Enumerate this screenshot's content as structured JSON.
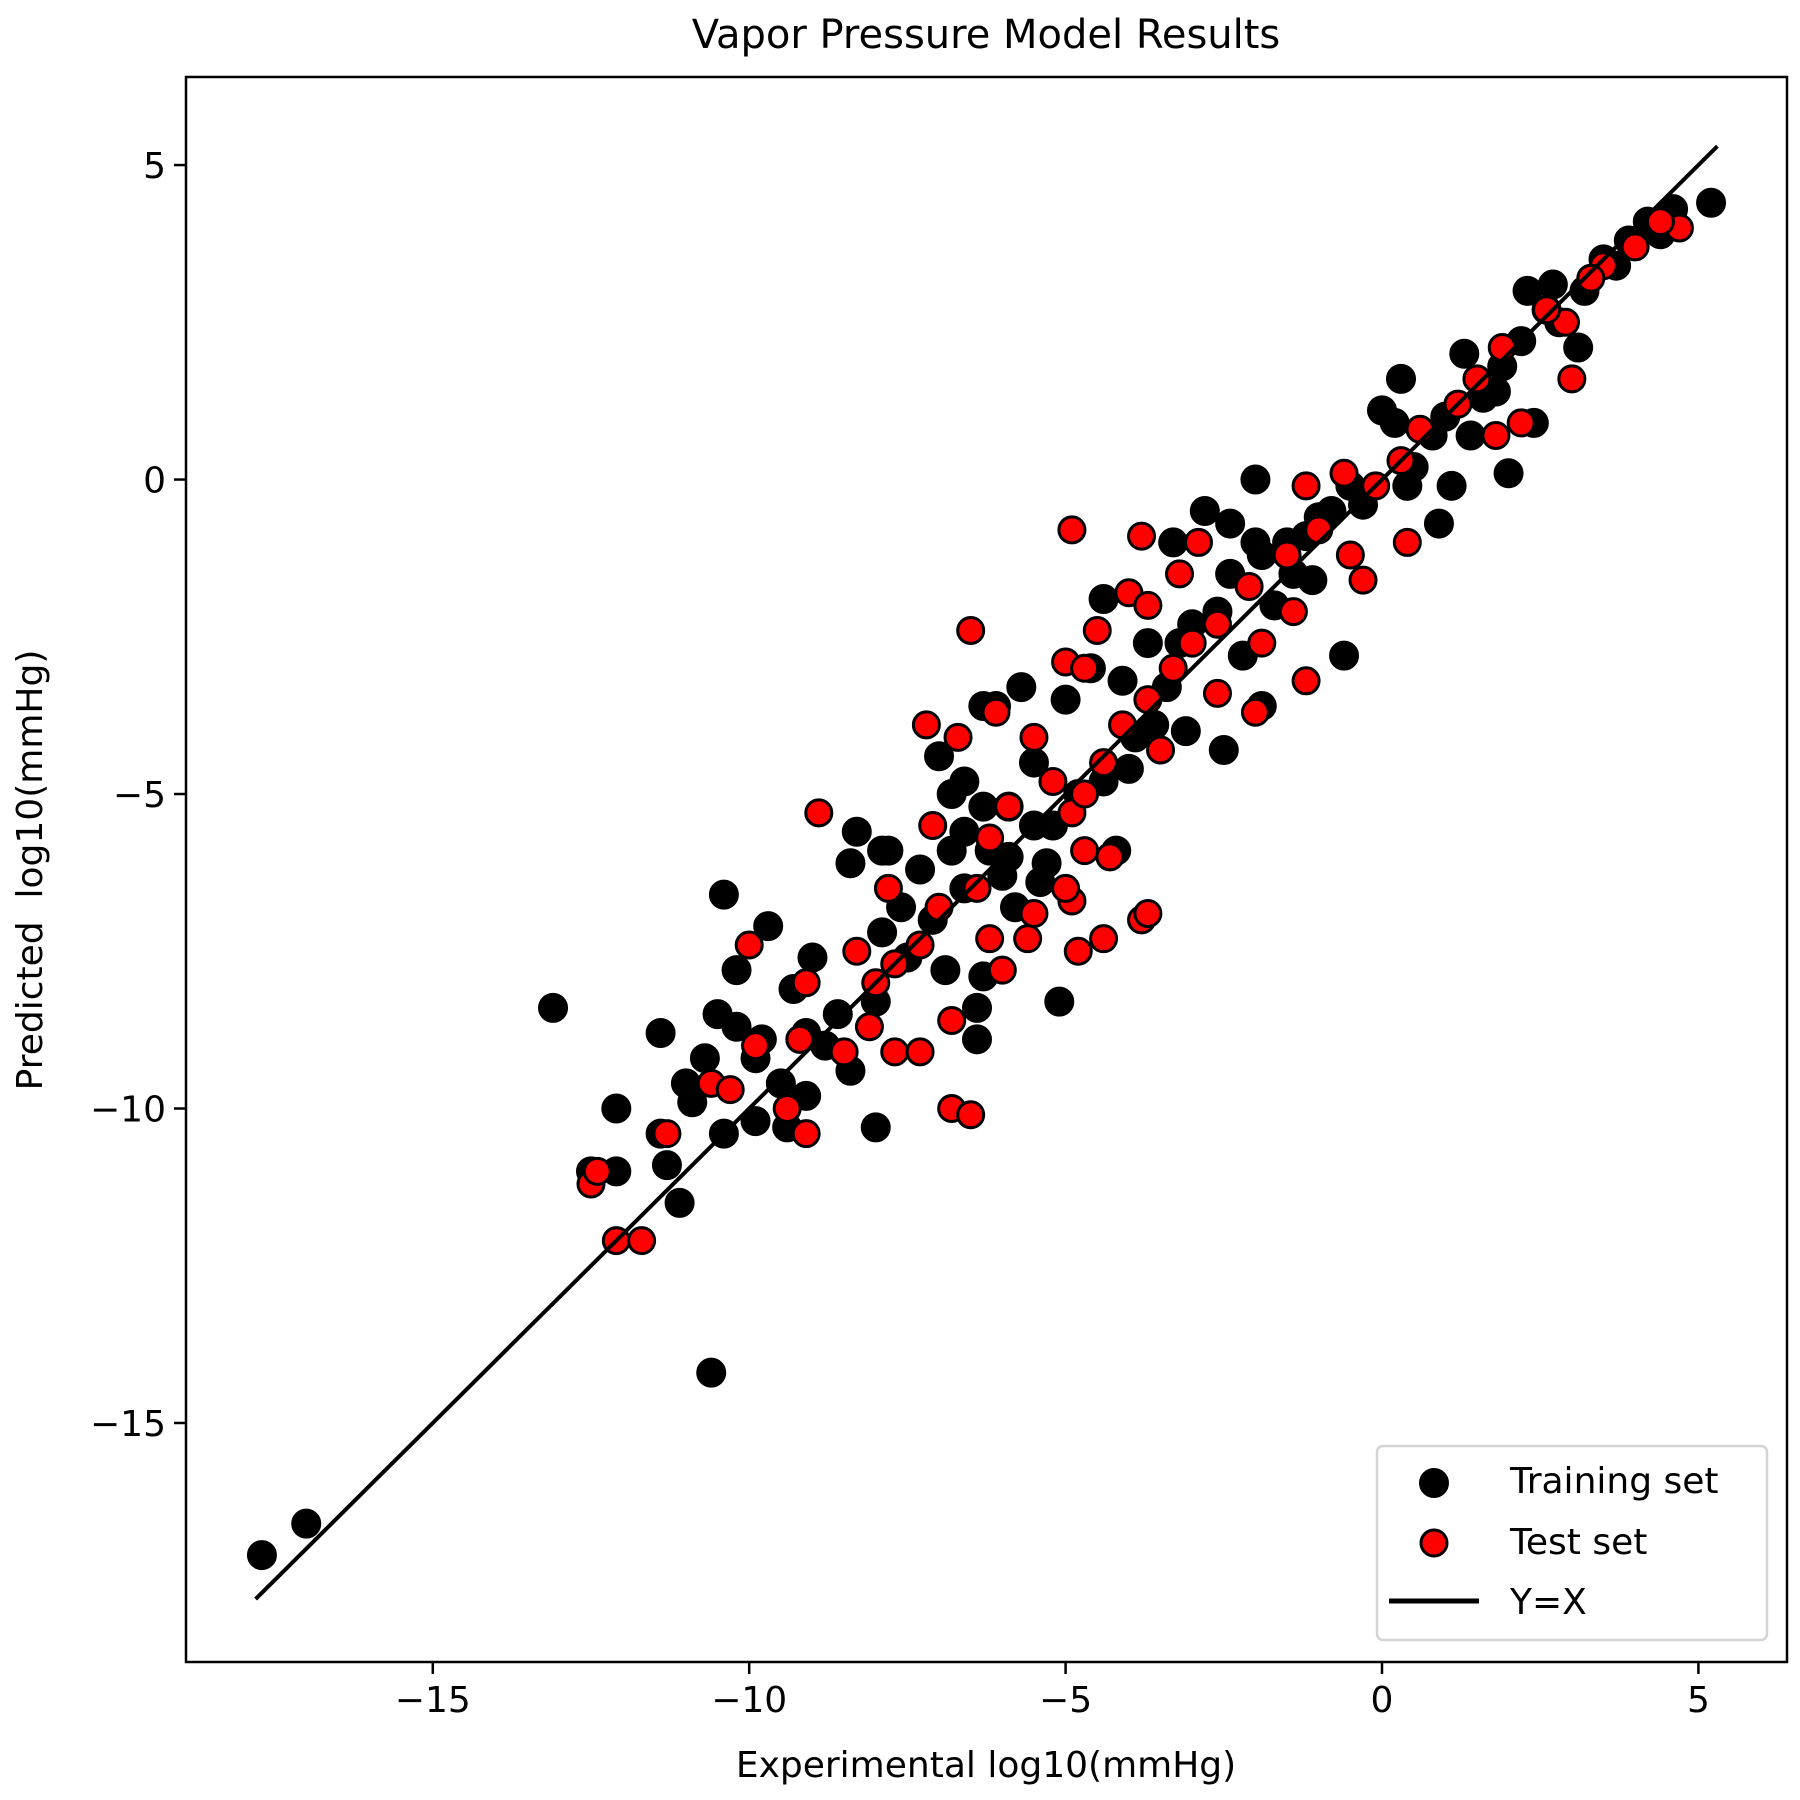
{
  "chart_data": {
    "type": "scatter",
    "title": "Vapor Pressure Model Results",
    "xlabel": "Experimental log10(mmHg)",
    "ylabel": "Predicted  log10(mmHg)",
    "xlim": [
      -18.9,
      6.4
    ],
    "ylim": [
      -18.8,
      6.4
    ],
    "xticks": [
      -15,
      -10,
      -5,
      0,
      5
    ],
    "yticks": [
      -15,
      -10,
      -5,
      0,
      5
    ],
    "xtick_labels": [
      "−15",
      "−10",
      "−5",
      "0",
      "5"
    ],
    "ytick_labels": [
      "−15",
      "−10",
      "−5",
      "0",
      "5"
    ],
    "grid": false,
    "legend": {
      "placement": "bottom-right",
      "entries": [
        "Training set",
        "Test set",
        "Y=X"
      ]
    },
    "series": [
      {
        "name": "Training set",
        "color": "#000000",
        "edge_color": "#000000",
        "points": [
          [
            -17.7,
            -17.1
          ],
          [
            -17.0,
            -16.6
          ],
          [
            -10.6,
            -14.2
          ],
          [
            -13.1,
            -8.4
          ],
          [
            -12.1,
            -10.0
          ],
          [
            -12.1,
            -11.0
          ],
          [
            -12.5,
            -11.0
          ],
          [
            -11.4,
            -8.8
          ],
          [
            -11.1,
            -11.5
          ],
          [
            -11.3,
            -10.9
          ],
          [
            -11.4,
            -10.4
          ],
          [
            -11.0,
            -9.6
          ],
          [
            -10.4,
            -6.6
          ],
          [
            -10.2,
            -7.8
          ],
          [
            -9.7,
            -7.1
          ],
          [
            -10.5,
            -8.5
          ],
          [
            -10.7,
            -9.2
          ],
          [
            -10.4,
            -10.4
          ],
          [
            -9.9,
            -10.2
          ],
          [
            -9.4,
            -10.3
          ],
          [
            -8.0,
            -10.3
          ],
          [
            -8.3,
            -5.6
          ],
          [
            -8.4,
            -6.1
          ],
          [
            -7.8,
            -5.9
          ],
          [
            -5.1,
            -8.3
          ],
          [
            -5.7,
            -3.3
          ],
          [
            -6.3,
            -3.6
          ],
          [
            -6.1,
            -3.6
          ],
          [
            -2.0,
            0.0
          ],
          [
            0.3,
            1.6
          ],
          [
            2.0,
            0.1
          ],
          [
            2.4,
            0.9
          ],
          [
            5.2,
            4.4
          ],
          [
            0.9,
            -0.7
          ],
          [
            -0.6,
            -2.8
          ],
          [
            -1.9,
            -3.6
          ],
          [
            -2.5,
            -4.3
          ],
          [
            -2.8,
            -0.5
          ],
          [
            -3.3,
            -1.0
          ],
          [
            -4.4,
            -1.9
          ],
          [
            -6.4,
            -8.9
          ],
          [
            -6.4,
            -8.4
          ],
          [
            -6.3,
            -7.9
          ],
          [
            -7.0,
            -4.4
          ],
          [
            -6.3,
            -5.2
          ],
          [
            -6.9,
            -7.8
          ],
          [
            -9.0,
            -7.6
          ],
          [
            -9.3,
            -8.1
          ],
          [
            -8.4,
            -9.4
          ],
          [
            -9.1,
            -9.8
          ],
          [
            -7.9,
            -7.2
          ],
          [
            -7.9,
            -5.9
          ],
          [
            -5.2,
            -5.5
          ],
          [
            -4.2,
            -5.9
          ],
          [
            -3.6,
            -3.9
          ],
          [
            -3.1,
            -4.0
          ],
          [
            0.0,
            1.1
          ],
          [
            0.4,
            -0.1
          ],
          [
            1.1,
            -0.1
          ],
          [
            1.4,
            0.7
          ],
          [
            1.8,
            1.4
          ],
          [
            2.6,
            2.7
          ],
          [
            3.5,
            3.5
          ],
          [
            4.2,
            4.1
          ],
          [
            4.6,
            4.3
          ],
          [
            3.1,
            2.1
          ],
          [
            2.3,
            3.0
          ],
          [
            -0.8,
            -0.5
          ],
          [
            -1.4,
            -1.5
          ],
          [
            -2.4,
            -0.7
          ],
          [
            -2.6,
            -2.1
          ],
          [
            -3.7,
            -2.6
          ],
          [
            -4.6,
            -3.0
          ],
          [
            -5.0,
            -3.5
          ],
          [
            -5.5,
            -4.5
          ],
          [
            -5.9,
            -5.2
          ],
          [
            -6.2,
            -5.9
          ],
          [
            -6.6,
            -6.5
          ],
          [
            -7.1,
            -7.0
          ],
          [
            -7.5,
            -7.6
          ],
          [
            -8.0,
            -8.3
          ],
          [
            -8.6,
            -8.5
          ],
          [
            -9.1,
            -8.8
          ],
          [
            -9.5,
            -9.6
          ],
          [
            -9.9,
            -9.2
          ],
          [
            -10.2,
            -8.7
          ],
          [
            -3.0,
            -2.3
          ],
          [
            -1.9,
            -1.2
          ],
          [
            -1.0,
            -0.6
          ],
          [
            -0.5,
            -0.1
          ],
          [
            0.8,
            0.7
          ],
          [
            1.9,
            1.8
          ],
          [
            2.8,
            2.5
          ],
          [
            3.9,
            3.8
          ],
          [
            -3.9,
            -4.1
          ],
          [
            -4.4,
            -4.8
          ],
          [
            -5.5,
            -5.5
          ],
          [
            -2.4,
            -1.5
          ],
          [
            -1.5,
            -1.0
          ],
          [
            -6.8,
            -5.0
          ],
          [
            -6.6,
            -5.6
          ],
          [
            -7.3,
            -6.2
          ],
          [
            -7.6,
            -6.8
          ],
          [
            -6.0,
            -6.3
          ],
          [
            -5.8,
            -6.8
          ],
          [
            -5.4,
            -6.4
          ],
          [
            -4.8,
            -5.0
          ],
          [
            -4.0,
            -4.6
          ],
          [
            -3.4,
            -3.3
          ],
          [
            -2.2,
            -2.8
          ],
          [
            -1.7,
            -2.0
          ],
          [
            -1.2,
            -0.9
          ],
          [
            -0.3,
            -0.4
          ],
          [
            0.5,
            0.2
          ],
          [
            1.0,
            1.0
          ],
          [
            1.6,
            1.3
          ],
          [
            2.2,
            2.2
          ],
          [
            3.2,
            3.0
          ],
          [
            3.7,
            3.4
          ],
          [
            4.4,
            3.9
          ],
          [
            -8.8,
            -9.0
          ],
          [
            -9.8,
            -8.9
          ],
          [
            -10.9,
            -9.9
          ],
          [
            -6.6,
            -4.8
          ],
          [
            -6.8,
            -5.9
          ],
          [
            -5.9,
            -6.0
          ],
          [
            -5.3,
            -6.1
          ],
          [
            -4.1,
            -3.2
          ],
          [
            -3.2,
            -2.6
          ],
          [
            -2.0,
            -1.0
          ],
          [
            -1.1,
            -1.6
          ],
          [
            0.2,
            0.9
          ],
          [
            1.3,
            2.0
          ],
          [
            2.7,
            3.1
          ]
        ]
      },
      {
        "name": "Test set",
        "color": "#ff0000",
        "edge_color": "#000000",
        "points": [
          [
            -4.9,
            -0.8
          ],
          [
            -3.8,
            -0.9
          ],
          [
            -6.5,
            -2.4
          ],
          [
            -8.9,
            -5.3
          ],
          [
            -7.2,
            -3.9
          ],
          [
            -6.7,
            -4.1
          ],
          [
            -6.1,
            -3.7
          ],
          [
            -10.0,
            -7.4
          ],
          [
            -12.1,
            -12.1
          ],
          [
            -11.7,
            -12.1
          ],
          [
            -12.5,
            -11.2
          ],
          [
            -12.4,
            -11.0
          ],
          [
            -11.3,
            -10.4
          ],
          [
            -10.6,
            -9.6
          ],
          [
            -10.3,
            -9.7
          ],
          [
            -9.9,
            -9.0
          ],
          [
            -9.4,
            -10.0
          ],
          [
            -9.1,
            -10.4
          ],
          [
            -9.2,
            -8.9
          ],
          [
            -9.1,
            -8.0
          ],
          [
            -8.5,
            -9.1
          ],
          [
            -8.1,
            -8.7
          ],
          [
            -8.3,
            -7.5
          ],
          [
            -7.8,
            -6.5
          ],
          [
            -7.7,
            -9.1
          ],
          [
            -7.3,
            -9.1
          ],
          [
            -6.8,
            -10.0
          ],
          [
            -6.5,
            -10.1
          ],
          [
            -6.8,
            -8.6
          ],
          [
            -6.0,
            -7.8
          ],
          [
            -6.2,
            -7.3
          ],
          [
            -5.6,
            -7.3
          ],
          [
            -5.5,
            -6.9
          ],
          [
            -4.8,
            -7.5
          ],
          [
            -4.4,
            -7.3
          ],
          [
            -3.8,
            -7.0
          ],
          [
            -3.7,
            -6.9
          ],
          [
            -4.9,
            -6.7
          ],
          [
            -5.0,
            -6.5
          ],
          [
            -4.3,
            -6.0
          ],
          [
            -4.7,
            -5.9
          ],
          [
            -4.9,
            -5.3
          ],
          [
            -5.0,
            -2.9
          ],
          [
            -4.7,
            -3.0
          ],
          [
            -4.5,
            -2.4
          ],
          [
            -4.0,
            -1.8
          ],
          [
            -3.7,
            -2.0
          ],
          [
            -3.2,
            -1.5
          ],
          [
            -2.9,
            -1.0
          ],
          [
            -2.0,
            -3.7
          ],
          [
            -1.2,
            -3.2
          ],
          [
            -1.2,
            -0.1
          ],
          [
            -0.3,
            -1.6
          ],
          [
            0.4,
            -1.0
          ],
          [
            2.2,
            0.9
          ],
          [
            1.8,
            0.7
          ],
          [
            3.0,
            1.6
          ],
          [
            2.9,
            2.5
          ],
          [
            4.7,
            4.0
          ],
          [
            4.4,
            4.1
          ],
          [
            4.0,
            3.7
          ],
          [
            3.5,
            3.4
          ],
          [
            3.3,
            3.2
          ],
          [
            2.6,
            2.7
          ],
          [
            1.9,
            2.1
          ],
          [
            1.5,
            1.6
          ],
          [
            1.2,
            1.2
          ],
          [
            0.6,
            0.8
          ],
          [
            0.3,
            0.3
          ],
          [
            -0.1,
            -0.1
          ],
          [
            -0.6,
            0.1
          ],
          [
            -1.0,
            -0.8
          ],
          [
            -1.5,
            -1.2
          ],
          [
            -2.1,
            -1.7
          ],
          [
            -2.6,
            -2.3
          ],
          [
            -3.0,
            -2.6
          ],
          [
            -3.3,
            -3.0
          ],
          [
            -3.7,
            -3.5
          ],
          [
            -4.1,
            -3.9
          ],
          [
            -4.4,
            -4.5
          ],
          [
            -4.7,
            -5.0
          ],
          [
            -5.2,
            -4.8
          ],
          [
            -5.5,
            -4.1
          ],
          [
            -5.9,
            -5.2
          ],
          [
            -6.2,
            -5.7
          ],
          [
            -6.4,
            -6.5
          ],
          [
            -7.0,
            -6.8
          ],
          [
            -7.1,
            -5.5
          ],
          [
            -7.3,
            -7.4
          ],
          [
            -7.7,
            -7.7
          ],
          [
            -8.0,
            -8.0
          ],
          [
            -3.5,
            -4.3
          ],
          [
            -2.6,
            -3.4
          ],
          [
            -1.9,
            -2.6
          ],
          [
            -1.4,
            -2.1
          ],
          [
            -0.5,
            -1.2
          ]
        ]
      },
      {
        "name": "Y=X",
        "color": "#000000",
        "line": [
          [
            -17.8,
            -17.8
          ],
          [
            5.3,
            5.3
          ]
        ]
      }
    ]
  }
}
